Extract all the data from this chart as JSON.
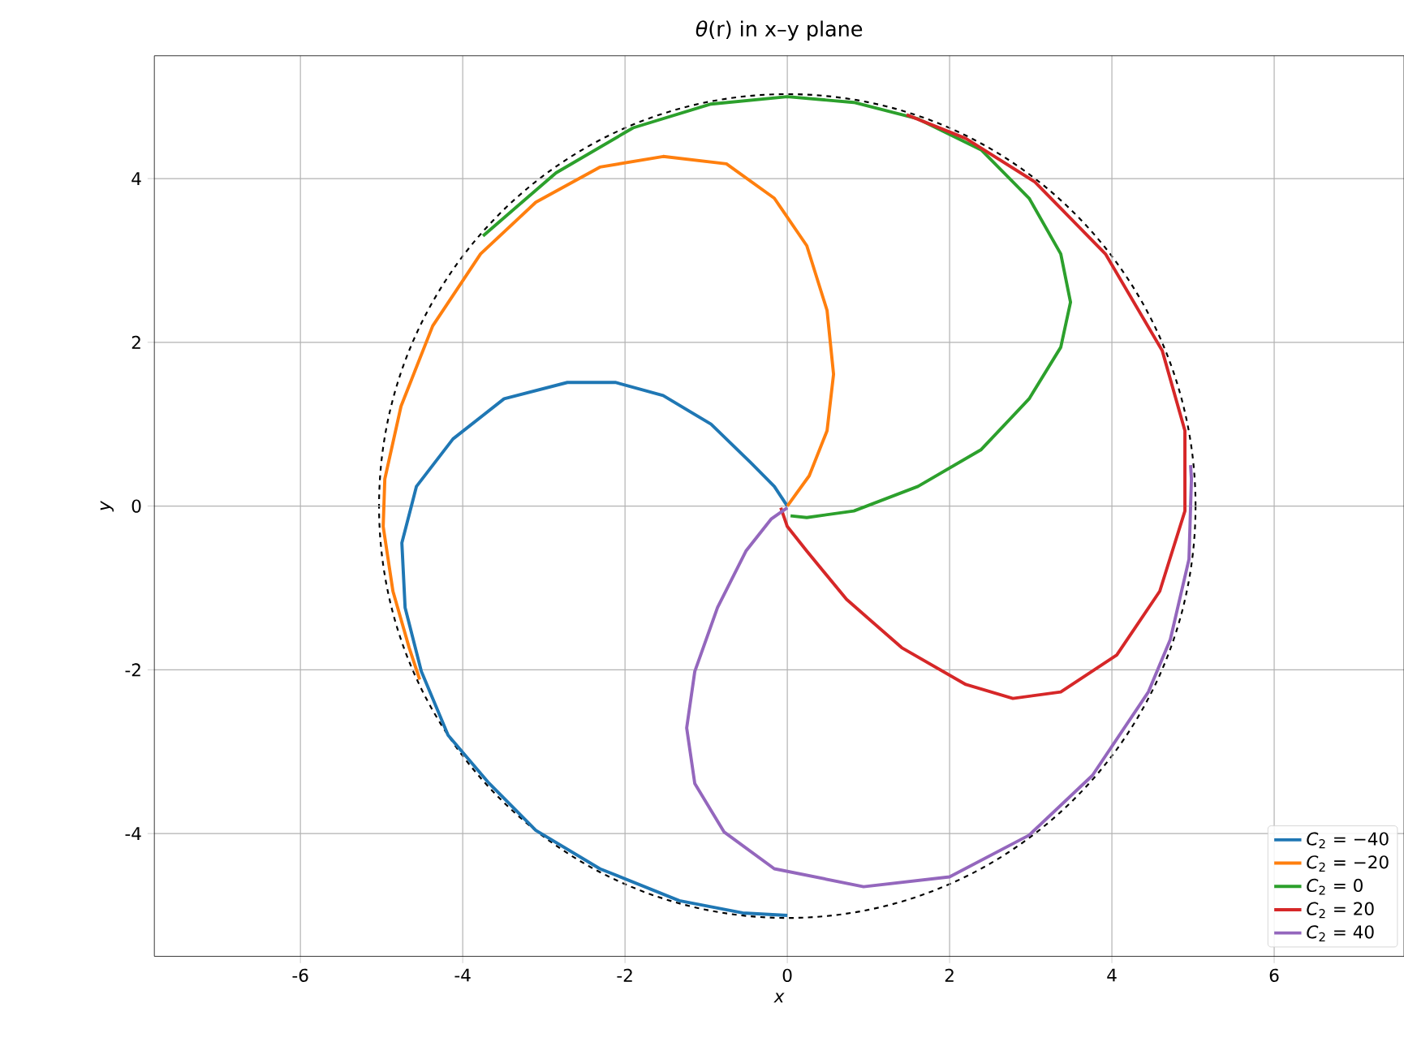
{
  "chart_data": {
    "type": "line",
    "title": "*θ*(r) in x–y plane",
    "xlabel": "x",
    "ylabel": "y",
    "xlim": [
      -7.8,
      7.6
    ],
    "ylim": [
      -5.5,
      5.5
    ],
    "xticks": [
      -6,
      -4,
      -2,
      0,
      2,
      4,
      6
    ],
    "yticks": [
      -4,
      -2,
      0,
      2,
      4
    ],
    "grid": true,
    "legend": "bottom right",
    "marker": "none",
    "series": [
      {
        "name": "*C*$_{2}$ = −40",
        "color": "#1f77b4",
        "x": [
          0,
          -0.16,
          -0.45,
          -0.94,
          -1.53,
          -2.12,
          -2.71,
          -3.49,
          -4.12,
          -4.57,
          -4.75,
          -4.71,
          -4.51,
          -4.18,
          -3.69,
          -3.1,
          -2.31,
          -1.33,
          -0.55,
          0
        ],
        "values": [
          0,
          0.24,
          0.53,
          1.0,
          1.35,
          1.51,
          1.51,
          1.31,
          0.82,
          0.24,
          -0.45,
          -1.24,
          -2.02,
          -2.8,
          -3.37,
          -3.96,
          -4.43,
          -4.82,
          -4.97,
          -5.0
        ]
      },
      {
        "name": "*C*$_{2}$ = −20",
        "color": "#ff7f0e",
        "x": [
          0,
          0.27,
          0.49,
          0.57,
          0.49,
          0.24,
          -0.16,
          -0.75,
          -1.53,
          -2.31,
          -3.1,
          -3.78,
          -4.37,
          -4.76,
          -4.96,
          -4.98,
          -4.86,
          -4.66,
          -4.53
        ],
        "values": [
          0,
          0.37,
          0.92,
          1.61,
          2.39,
          3.18,
          3.76,
          4.18,
          4.27,
          4.14,
          3.71,
          3.08,
          2.2,
          1.22,
          0.33,
          -0.25,
          -1.04,
          -1.73,
          -2.12
        ]
      },
      {
        "name": "*C*$_{2}$ = 0",
        "color": "#2ca02c",
        "x": [
          0.04,
          0.24,
          0.82,
          1.61,
          2.39,
          2.98,
          3.37,
          3.49,
          3.37,
          2.98,
          2.39,
          1.61,
          0.82,
          0,
          -0.94,
          -1.9,
          -2.85,
          -3.75
        ],
        "values": [
          -0.12,
          -0.14,
          -0.06,
          0.24,
          0.69,
          1.31,
          1.94,
          2.49,
          3.08,
          3.76,
          4.35,
          4.73,
          4.93,
          5.0,
          4.91,
          4.62,
          4.07,
          3.3
        ]
      },
      {
        "name": "*C*$_{2}$ = 20",
        "color": "#d62728",
        "x": [
          -0.08,
          0,
          0.24,
          0.73,
          1.41,
          2.2,
          2.78,
          3.37,
          4.06,
          4.59,
          4.9,
          4.9,
          4.62,
          3.92,
          3.05,
          2.2,
          1.47
        ],
        "values": [
          -0.02,
          -0.25,
          -0.55,
          -1.14,
          -1.73,
          -2.18,
          -2.35,
          -2.27,
          -1.82,
          -1.04,
          -0.06,
          0.92,
          1.9,
          3.08,
          3.96,
          4.49,
          4.78
        ]
      },
      {
        "name": "*C*$_{2}$ = 40",
        "color": "#9467bd",
        "x": [
          0,
          -0.2,
          -0.51,
          -0.86,
          -1.14,
          -1.24,
          -1.14,
          -0.78,
          -0.16,
          0.94,
          2.0,
          2.98,
          3.76,
          4.45,
          4.72,
          4.95,
          4.98,
          4.97
        ],
        "values": [
          -0.02,
          -0.16,
          -0.55,
          -1.24,
          -2.02,
          -2.71,
          -3.39,
          -3.98,
          -4.43,
          -4.65,
          -4.53,
          -4.02,
          -3.29,
          -2.27,
          -1.63,
          -0.65,
          0.33,
          0.5
        ]
      }
    ]
  }
}
